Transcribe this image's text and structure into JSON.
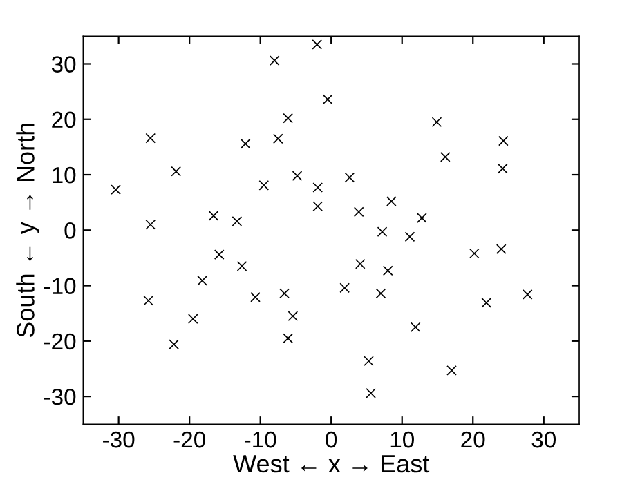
{
  "chart_data": {
    "type": "scatter",
    "xlabel": "West ← x → East",
    "ylabel": "South ← y → North",
    "x": [
      -30.4,
      -25.5,
      -25.5,
      -21.9,
      -16.6,
      -13.3,
      -12.1,
      -9.5,
      -8.0,
      -7.5,
      -6.1,
      -4.8,
      -2.0,
      -1.9,
      -1.9,
      -0.5,
      14.9,
      24.3,
      16.1,
      24.2,
      2.6,
      8.5,
      3.9,
      12.8,
      7.2,
      11.1,
      4.1,
      8.0,
      20.2,
      24.0,
      1.9,
      7.0,
      21.9,
      27.7,
      11.9,
      5.3,
      17.0,
      5.6,
      -15.8,
      -12.6,
      -18.2,
      -25.8,
      -10.7,
      -6.6,
      -19.5,
      -5.4,
      -22.2,
      -6.1
    ],
    "values": [
      7.3,
      16.6,
      1.0,
      10.6,
      2.6,
      1.6,
      15.6,
      8.1,
      30.6,
      16.5,
      20.2,
      9.8,
      33.5,
      7.7,
      4.3,
      23.6,
      19.5,
      16.1,
      13.2,
      11.1,
      9.5,
      5.2,
      3.3,
      2.2,
      -0.3,
      -1.2,
      -6.1,
      -7.3,
      -4.2,
      -3.4,
      -10.4,
      -11.4,
      -13.1,
      -11.6,
      -17.5,
      -23.6,
      -25.3,
      -29.4,
      -4.4,
      -6.5,
      -9.1,
      -12.7,
      -12.1,
      -11.4,
      -16.0,
      -15.5,
      -20.6,
      -19.5
    ],
    "color": "#000000",
    "marker": "cross",
    "xlim": [
      -35,
      35
    ],
    "ylim": [
      -35,
      35
    ],
    "xticks": [
      -30,
      -20,
      -10,
      0,
      10,
      20,
      30
    ],
    "yticks": [
      -30,
      -20,
      -10,
      0,
      10,
      20,
      30
    ],
    "grid": false,
    "legend": false
  }
}
